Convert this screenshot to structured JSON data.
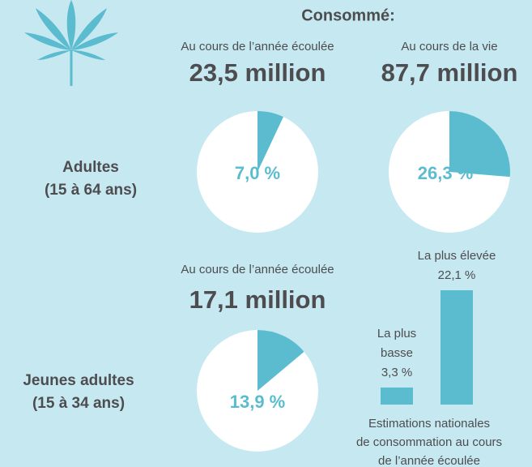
{
  "heading": "Consommé:",
  "groups": [
    {
      "label": [
        "Adultes",
        "(15 à 64 ans)"
      ],
      "pies": [
        {
          "type": "pie",
          "caption": "Au cours de l’année écoulée",
          "total": "23,5 million",
          "value": 7.0,
          "value_label": "7,0 %"
        },
        {
          "type": "pie",
          "caption": "Au cours de la vie",
          "total": "87,7 million",
          "value": 26.3,
          "value_label": "26,3 %"
        }
      ]
    },
    {
      "label": [
        "Jeunes adultes",
        "(15 à 34 ans)"
      ],
      "pies": [
        {
          "type": "pie",
          "caption": "Au cours de l’année écoulée",
          "total": "17,1 million",
          "value": 13.9,
          "value_label": "13,9 %"
        }
      ]
    }
  ],
  "bar_chart": {
    "type": "bar",
    "color": "#5bbccf",
    "categories": [
      [
        "La plus",
        "basse"
      ],
      [
        "La plus élevée"
      ]
    ],
    "values": [
      3.3,
      22.1
    ],
    "value_labels": [
      "3,3 %",
      "22,1 %"
    ],
    "caption": [
      "Estimations nationales",
      "de consommation au cours",
      "de l’année écoulée"
    ]
  }
}
